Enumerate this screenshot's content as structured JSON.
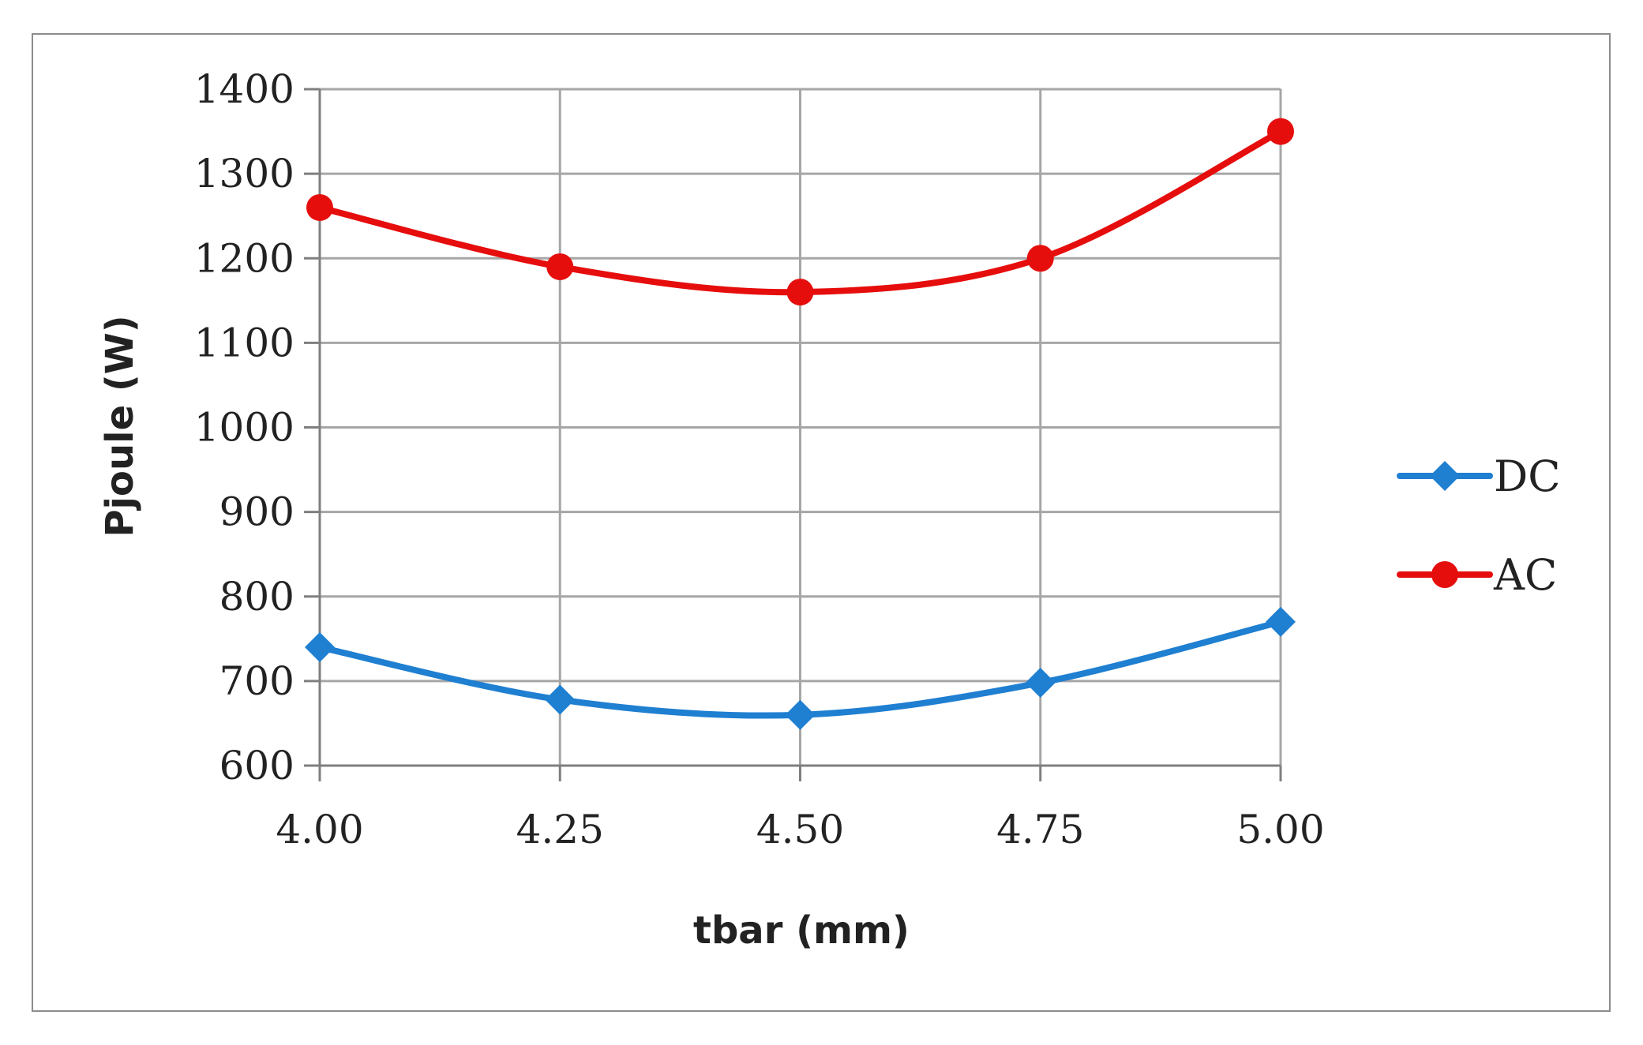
{
  "chart_data": {
    "type": "line",
    "x": [
      4.0,
      4.25,
      4.5,
      4.75,
      5.0
    ],
    "x_tick_labels": [
      "4.00",
      "4.25",
      "4.50",
      "4.75",
      "5.00"
    ],
    "y_tick_labels": [
      "600",
      "700",
      "800",
      "900",
      "1000",
      "1100",
      "1200",
      "1300",
      "1400"
    ],
    "y_ticks": [
      600,
      700,
      800,
      900,
      1000,
      1100,
      1200,
      1300,
      1400
    ],
    "xlim": [
      4.0,
      5.0
    ],
    "ylim": [
      600,
      1400
    ],
    "xlabel": "tbar (mm)",
    "ylabel": "Pjoule (W)",
    "grid": true,
    "legend_position": "right",
    "series": [
      {
        "name": "DC",
        "color": "#1f7fd1",
        "marker": "diamond",
        "values": [
          740,
          678,
          660,
          698,
          770
        ]
      },
      {
        "name": "AC",
        "color": "#e60d0d",
        "marker": "circle",
        "values": [
          1260,
          1190,
          1160,
          1200,
          1350
        ]
      }
    ]
  }
}
